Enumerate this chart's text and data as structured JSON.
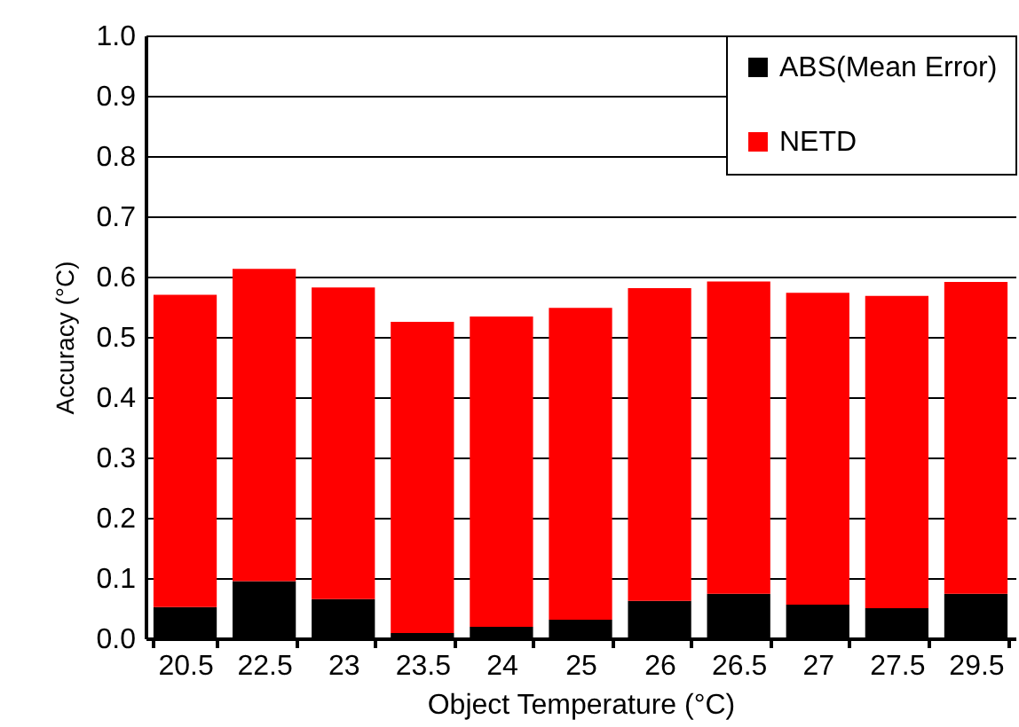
{
  "chart_data": {
    "type": "bar",
    "stacked": true,
    "xlabel": "Object Temperature (°C)",
    "ylabel": "Accuracy (°C)",
    "categories": [
      "20.5",
      "22.5",
      "23",
      "23.5",
      "24",
      "25",
      "26",
      "26.5",
      "27",
      "27.5",
      "29.5"
    ],
    "series": [
      {
        "name": "ABS(Mean Error)",
        "color": "#000000",
        "values": [
          0.052,
          0.095,
          0.065,
          0.009,
          0.019,
          0.031,
          0.062,
          0.074,
          0.056,
          0.05,
          0.074
        ]
      },
      {
        "name": "NETD",
        "color": "#ff0000",
        "values": [
          0.518,
          0.518,
          0.517,
          0.516,
          0.515,
          0.517,
          0.519,
          0.518,
          0.517,
          0.518,
          0.517
        ]
      }
    ],
    "ylim": [
      0,
      1
    ],
    "yticks": [
      {
        "value": 0,
        "label": "0.0"
      },
      0.1,
      0.2,
      0.3,
      0.4,
      0.5,
      0.6,
      0.7,
      0.8,
      0.9,
      {
        "value": 1,
        "label": "1.0"
      }
    ],
    "grid": "y",
    "legend": "top right"
  }
}
